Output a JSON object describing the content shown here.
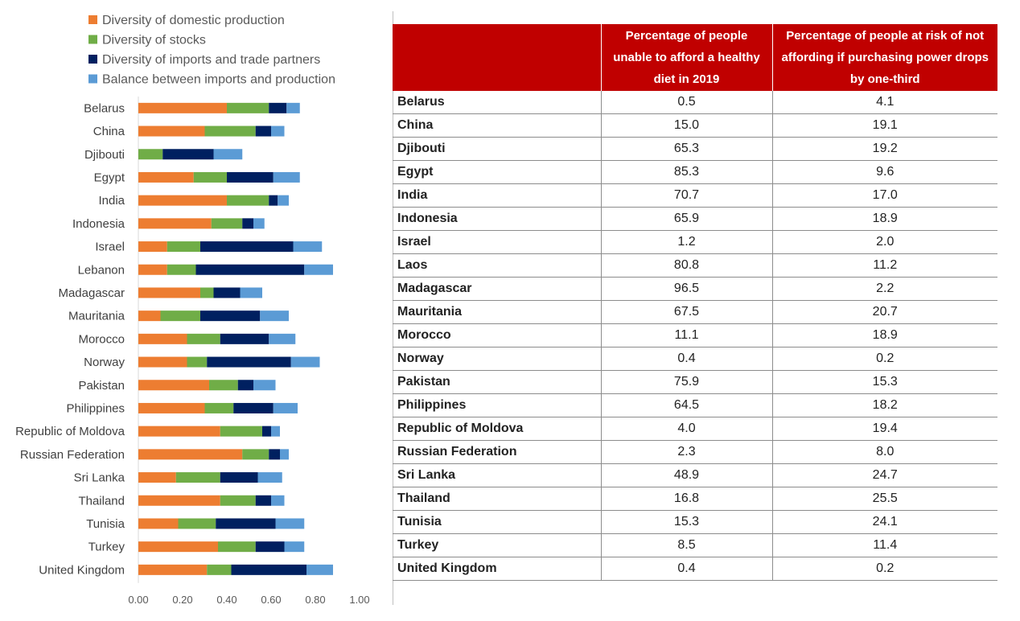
{
  "chart_data": {
    "type": "bar",
    "orientation": "horizontal",
    "stacked": true,
    "categories": [
      "Belarus",
      "China",
      "Djibouti",
      "Egypt",
      "India",
      "Indonesia",
      "Israel",
      "Lebanon",
      "Madagascar",
      "Mauritania",
      "Morocco",
      "Norway",
      "Pakistan",
      "Philippines",
      "Republic of Moldova",
      "Russian Federation",
      "Sri Lanka",
      "Thailand",
      "Tunisia",
      "Turkey",
      "United Kingdom"
    ],
    "series": [
      {
        "name": "Diversity of domestic production",
        "color": "#ed7d31",
        "values": [
          0.4,
          0.3,
          0.0,
          0.25,
          0.4,
          0.33,
          0.13,
          0.13,
          0.28,
          0.1,
          0.22,
          0.22,
          0.32,
          0.3,
          0.37,
          0.47,
          0.17,
          0.37,
          0.18,
          0.36,
          0.31
        ]
      },
      {
        "name": "Diversity of stocks",
        "color": "#70ad47",
        "values": [
          0.19,
          0.23,
          0.11,
          0.15,
          0.19,
          0.14,
          0.15,
          0.13,
          0.06,
          0.18,
          0.15,
          0.09,
          0.13,
          0.13,
          0.19,
          0.12,
          0.2,
          0.16,
          0.17,
          0.17,
          0.11
        ]
      },
      {
        "name": "Diversity of imports and trade partners",
        "color": "#002060",
        "values": [
          0.08,
          0.07,
          0.23,
          0.21,
          0.04,
          0.05,
          0.42,
          0.49,
          0.12,
          0.27,
          0.22,
          0.38,
          0.07,
          0.18,
          0.04,
          0.05,
          0.17,
          0.07,
          0.27,
          0.13,
          0.34
        ]
      },
      {
        "name": "Balance between imports and production",
        "color": "#5b9bd5",
        "values": [
          0.06,
          0.06,
          0.13,
          0.12,
          0.05,
          0.05,
          0.13,
          0.13,
          0.1,
          0.13,
          0.12,
          0.13,
          0.1,
          0.11,
          0.04,
          0.04,
          0.11,
          0.06,
          0.13,
          0.09,
          0.12
        ]
      }
    ],
    "xlim": [
      0,
      1
    ],
    "xticks": [
      "0.00",
      "0.20",
      "0.40",
      "0.60",
      "0.80",
      "1.00"
    ],
    "legend": "top",
    "grid": false
  },
  "table": {
    "headers": [
      "",
      "Percentage of people unable to afford a healthy diet in 2019",
      "Percentage of people at risk of not affording if purchasing power drops by one-third"
    ],
    "rows": [
      [
        "Belarus",
        "0.5",
        "4.1"
      ],
      [
        "China",
        "15.0",
        "19.1"
      ],
      [
        "Djibouti",
        "65.3",
        "19.2"
      ],
      [
        "Egypt",
        "85.3",
        "9.6"
      ],
      [
        "India",
        "70.7",
        "17.0"
      ],
      [
        "Indonesia",
        "65.9",
        "18.9"
      ],
      [
        "Israel",
        "1.2",
        "2.0"
      ],
      [
        "Laos",
        "80.8",
        "11.2"
      ],
      [
        "Madagascar",
        "96.5",
        "2.2"
      ],
      [
        "Mauritania",
        "67.5",
        "20.7"
      ],
      [
        "Morocco",
        "11.1",
        "18.9"
      ],
      [
        "Norway",
        "0.4",
        "0.2"
      ],
      [
        "Pakistan",
        "75.9",
        "15.3"
      ],
      [
        "Philippines",
        "64.5",
        "18.2"
      ],
      [
        "Republic of Moldova",
        "4.0",
        "19.4"
      ],
      [
        "Russian Federation",
        "2.3",
        "8.0"
      ],
      [
        "Sri Lanka",
        "48.9",
        "24.7"
      ],
      [
        "Thailand",
        "16.8",
        "25.5"
      ],
      [
        "Tunisia",
        "15.3",
        "24.1"
      ],
      [
        "Turkey",
        "8.5",
        "11.4"
      ],
      [
        "United Kingdom",
        "0.4",
        "0.2"
      ]
    ]
  }
}
